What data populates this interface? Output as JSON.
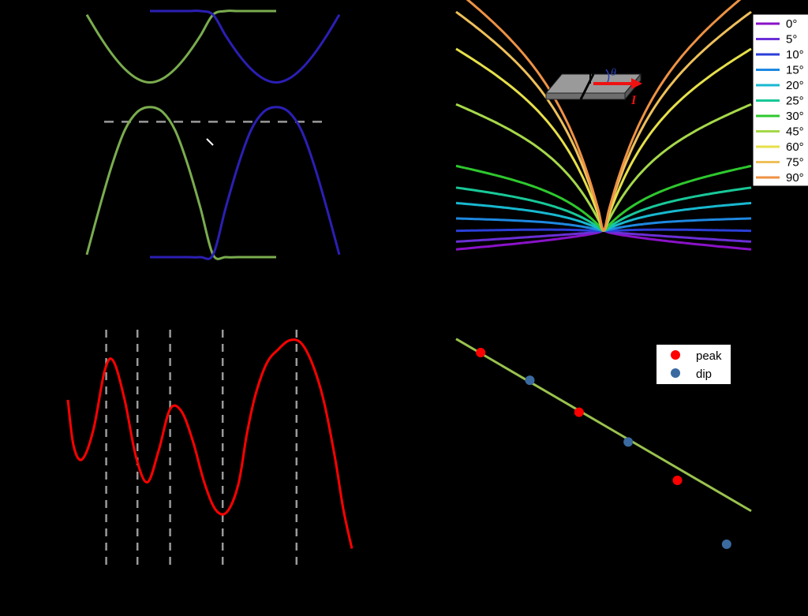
{
  "chart_data": [
    {
      "panel": "top-left",
      "type": "line",
      "title": "",
      "xlabel": "",
      "ylabel": "",
      "xlim": [
        -1,
        1
      ],
      "ylim": [
        -1,
        1
      ],
      "grid": false,
      "series": [
        {
          "color": "#7aac4e",
          "x": [
            -1.0,
            -0.9,
            -0.8,
            -0.7,
            -0.6,
            -0.5,
            -0.4,
            -0.3,
            -0.2,
            -0.1,
            0.0,
            0.1,
            0.2,
            0.3,
            0.4,
            0.5
          ],
          "y": [
            0.97,
            0.8,
            0.65,
            0.53,
            0.45,
            0.42,
            0.45,
            0.53,
            0.65,
            0.8,
            0.97,
            1.0,
            1.0,
            1.0,
            1.0,
            1.0
          ]
        },
        {
          "color": "#7aac4e",
          "x": [
            -1.0,
            -0.9,
            -0.8,
            -0.7,
            -0.6,
            -0.5,
            -0.4,
            -0.3,
            -0.2,
            -0.1,
            0.0,
            0.1,
            0.2,
            0.3,
            0.4,
            0.5
          ],
          "y": [
            -0.98,
            -0.6,
            -0.25,
            0.03,
            0.18,
            0.22,
            0.18,
            0.03,
            -0.25,
            -0.6,
            -0.98,
            -1.0,
            -1.0,
            -1.0,
            -1.0,
            -1.0
          ]
        },
        {
          "color": "#2b1fb4",
          "x": [
            -0.5,
            -0.4,
            -0.3,
            -0.2,
            -0.1,
            0.0,
            0.1,
            0.2,
            0.3,
            0.4,
            0.5,
            0.6,
            0.7,
            0.8,
            0.9,
            1.0
          ],
          "y": [
            1.0,
            1.0,
            1.0,
            1.0,
            1.0,
            0.97,
            0.8,
            0.65,
            0.53,
            0.45,
            0.42,
            0.45,
            0.53,
            0.65,
            0.8,
            0.97
          ]
        },
        {
          "color": "#2b1fb4",
          "x": [
            -0.5,
            -0.4,
            -0.3,
            -0.2,
            -0.1,
            0.0,
            0.1,
            0.2,
            0.3,
            0.4,
            0.5,
            0.6,
            0.7,
            0.8,
            0.9,
            1.0
          ],
          "y": [
            -1.0,
            -1.0,
            -1.0,
            -1.0,
            -1.0,
            -0.98,
            -0.6,
            -0.25,
            0.03,
            0.18,
            0.22,
            0.18,
            0.03,
            -0.25,
            -0.6,
            -0.98
          ]
        }
      ],
      "hline": {
        "y": 0.1,
        "style": "dashed",
        "color": "#9a9a9a"
      }
    },
    {
      "panel": "top-right",
      "type": "line",
      "title": "",
      "xlabel": "",
      "ylabel": "",
      "xlim": [
        -1,
        1
      ],
      "ylim": [
        0,
        1.6
      ],
      "grid": false,
      "legend": {
        "placement": "top-right",
        "entries": [
          "0°",
          "5°",
          "10°",
          "15°",
          "20°",
          "25°",
          "30°",
          "45°",
          "60°",
          "75°",
          "90°"
        ]
      },
      "inset_labels": {
        "angle": "θ",
        "current": "I"
      },
      "series": [
        {
          "name": "0°",
          "color": "#8a12c8",
          "wing": 0.0,
          "dip": 0.12
        },
        {
          "name": "5°",
          "color": "#6a2fd6",
          "wing": 0.03,
          "dip": 0.1
        },
        {
          "name": "10°",
          "color": "#2a3fd8",
          "wing": 0.08,
          "dip": 0.08
        },
        {
          "name": "15°",
          "color": "#1e88e0",
          "wing": 0.14,
          "dip": 0.06
        },
        {
          "name": "20°",
          "color": "#18b8d0",
          "wing": 0.22,
          "dip": 0.04
        },
        {
          "name": "25°",
          "color": "#18c898",
          "wing": 0.3,
          "dip": 0.02
        },
        {
          "name": "30°",
          "color": "#2ec82e",
          "wing": 0.42,
          "dip": 0.0
        },
        {
          "name": "45°",
          "color": "#a6d84a",
          "wing": 0.82,
          "dip": 0.0
        },
        {
          "name": "60°",
          "color": "#e6e04a",
          "wing": 1.18,
          "dip": 0.0
        },
        {
          "name": "75°",
          "color": "#eec05a",
          "wing": 1.42,
          "dip": 0.0
        },
        {
          "name": "90°",
          "color": "#ee9244",
          "wing": 1.56,
          "dip": 0.0
        }
      ]
    },
    {
      "panel": "bottom-left",
      "type": "line",
      "title": "",
      "xlabel": "",
      "ylabel": "",
      "xlim": [
        0,
        1
      ],
      "ylim": [
        0,
        1
      ],
      "grid": false,
      "series": [
        {
          "color": "#ff0000",
          "x": [
            0.0,
            0.02,
            0.05,
            0.09,
            0.13,
            0.16,
            0.2,
            0.24,
            0.28,
            0.32,
            0.36,
            0.4,
            0.44,
            0.48,
            0.52,
            0.56,
            0.6,
            0.63,
            0.66,
            0.7,
            0.74,
            0.78,
            0.82,
            0.86,
            0.9,
            0.94,
            0.97,
            1.0
          ],
          "y": [
            0.7,
            0.5,
            0.44,
            0.57,
            0.83,
            0.87,
            0.7,
            0.45,
            0.34,
            0.48,
            0.66,
            0.65,
            0.52,
            0.34,
            0.22,
            0.21,
            0.33,
            0.55,
            0.72,
            0.86,
            0.92,
            0.96,
            0.95,
            0.86,
            0.7,
            0.45,
            0.22,
            0.05
          ]
        }
      ],
      "vlines_x": [
        0.135,
        0.245,
        0.36,
        0.545,
        0.805
      ]
    },
    {
      "panel": "bottom-right",
      "type": "scatter",
      "title": "",
      "xlabel": "",
      "ylabel": "",
      "xlim": [
        0,
        6
      ],
      "ylim": [
        0,
        5
      ],
      "grid": false,
      "legend": {
        "placement": "top-right",
        "entries": [
          "peak",
          "dip"
        ]
      },
      "series": [
        {
          "name": "peak",
          "color": "#ff0000",
          "x": [
            0.5,
            2.5,
            4.5
          ],
          "y": [
            4.5,
            3.1,
            1.5
          ]
        },
        {
          "name": "dip",
          "color": "#3a6aa0",
          "x": [
            1.5,
            3.5,
            5.5
          ],
          "y": [
            3.85,
            2.4,
            0.0
          ]
        }
      ],
      "fit_line": {
        "color": "#9ac24e",
        "x": [
          0.0,
          6.0
        ],
        "y": [
          4.82,
          0.78
        ]
      }
    }
  ]
}
